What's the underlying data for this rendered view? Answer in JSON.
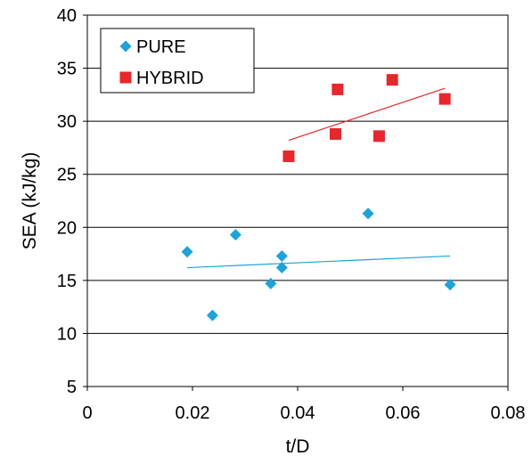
{
  "chart_data": {
    "type": "scatter",
    "title": "",
    "xlabel": "t/D",
    "ylabel": "SEA (kJ/kg)",
    "xlim": [
      0,
      0.08
    ],
    "ylim": [
      5,
      40
    ],
    "xticks": [
      0,
      0.02,
      0.04,
      0.06,
      0.08
    ],
    "xtick_labels": [
      "0",
      "0.02",
      "0.04",
      "0.06",
      "0.08"
    ],
    "yticks": [
      5,
      10,
      15,
      20,
      25,
      30,
      35,
      40
    ],
    "ytick_labels": [
      "5",
      "10",
      "15",
      "20",
      "25",
      "30",
      "35",
      "40"
    ],
    "grid": "horizontal",
    "legend_position": "top-left",
    "series": [
      {
        "name": "PURE",
        "marker": "diamond",
        "color": "#1ba3dc",
        "points": [
          {
            "x": 0.019,
            "y": 17.7
          },
          {
            "x": 0.0238,
            "y": 11.7
          },
          {
            "x": 0.0282,
            "y": 19.3
          },
          {
            "x": 0.0349,
            "y": 14.7
          },
          {
            "x": 0.037,
            "y": 17.3
          },
          {
            "x": 0.037,
            "y": 16.2
          },
          {
            "x": 0.0534,
            "y": 21.3
          },
          {
            "x": 0.069,
            "y": 14.6
          }
        ],
        "trendline": {
          "x": [
            0.019,
            0.069
          ],
          "y": [
            16.2,
            17.3
          ]
        }
      },
      {
        "name": "HYBRID",
        "marker": "square",
        "color": "#e8262b",
        "points": [
          {
            "x": 0.0383,
            "y": 26.7
          },
          {
            "x": 0.0472,
            "y": 28.8
          },
          {
            "x": 0.0476,
            "y": 33.0
          },
          {
            "x": 0.0555,
            "y": 28.6
          },
          {
            "x": 0.058,
            "y": 33.9
          },
          {
            "x": 0.068,
            "y": 32.1
          }
        ],
        "trendline": {
          "x": [
            0.0383,
            0.068
          ],
          "y": [
            28.2,
            33.1
          ]
        }
      }
    ]
  }
}
